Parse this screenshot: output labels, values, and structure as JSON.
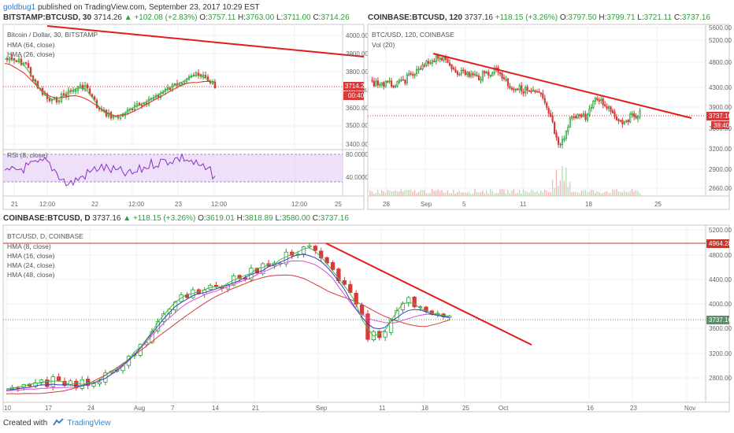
{
  "header": {
    "author": "goldbug1",
    "published": "published on TradingView.com, September 23, 2017 10:29 EST"
  },
  "footer": {
    "created_with": "Created with",
    "brand": "TradingView"
  },
  "colors": {
    "up": "#2e9e3a",
    "down": "#d83a3a",
    "trendline": "#e31b1b",
    "rsi_band": "#e6d3f5",
    "tag_red": "#d83a3a"
  },
  "chart_data": [
    {
      "type": "candlestick",
      "id": "bitstamp",
      "header": {
        "symbol": "BITSTAMP:BTCUSD, 30",
        "last": "3714.26",
        "change": "▲ +102.08 (+2.83%)",
        "o_label": "O:",
        "o": "3757.11",
        "h_label": "H:",
        "h": "3763.00",
        "l_label": "L:",
        "l": "3711.00",
        "c_label": "C:",
        "c": "3714.26"
      },
      "title": "Bitcoin / Dollar, 30, BITSTAMP",
      "indicators": [
        "HMA (64, close)",
        "HMA (26, close)"
      ],
      "y_ticks": [
        "4000.00",
        "3900.00",
        "3800.00",
        "3700.00",
        "3600.00",
        "3500.00",
        "3400.00"
      ],
      "last_price_tag": "3714.26",
      "time_tag": "00:40",
      "x_ticks": [
        "21",
        "12:00",
        "22",
        "12:00",
        "23",
        "12:00",
        "25"
      ],
      "sub": {
        "title": "RSI (8, close)",
        "y_ticks": [
          "80.0000",
          "40.0000"
        ]
      }
    },
    {
      "type": "candlestick",
      "id": "coinbase120",
      "header": {
        "symbol": "COINBASE:BTCUSD, 120",
        "last": "3737.16",
        "change": "+118.15 (+3.26%)",
        "o_label": "O:",
        "o": "3797.50",
        "h_label": "H:",
        "h": "3799.71",
        "l_label": "L:",
        "l": "3721.11",
        "c_label": "C:",
        "c": "3737.16"
      },
      "title": "BTC/USD, 120, COINBASE",
      "indicators": [
        "Vol (20)"
      ],
      "y_ticks": [
        "5600.00",
        "5200.00",
        "4800.00",
        "4300.00",
        "3900.00",
        "3600.00",
        "3200.00",
        "2900.00",
        "2660.00"
      ],
      "last_price_tag": "3737.16",
      "time_tag": "38:40",
      "x_ticks": [
        "28",
        "Sep",
        "5",
        "11",
        "18",
        "25"
      ]
    },
    {
      "type": "candlestick",
      "id": "coinbaseD",
      "header": {
        "symbol": "COINBASE:BTCUSD, D",
        "last": "3737.16",
        "change": "▲ +118.15 (+3.26%)",
        "o_label": "O:",
        "o": "3619.01",
        "h_label": "H:",
        "h": "3818.89",
        "l_label": "L:",
        "l": "3580.00",
        "c_label": "C:",
        "c": "3737.16"
      },
      "title": "BTC/USD, D, COINBASE",
      "indicators": [
        "HMA (8, close)",
        "HMA (16, close)",
        "HMA (24, close)",
        "HMA (48, close)"
      ],
      "y_ticks": [
        "5200.00",
        "4800.00",
        "4400.00",
        "4000.00",
        "3600.00",
        "3200.00",
        "2800.00"
      ],
      "resistance_tag": "4964.28",
      "last_price_tag": "3737.16",
      "x_ticks": [
        "10",
        "17",
        "24",
        "Aug",
        "7",
        "14",
        "21",
        "Sep",
        "11",
        "18",
        "25",
        "Oct",
        "16",
        "23",
        "Nov"
      ]
    }
  ]
}
